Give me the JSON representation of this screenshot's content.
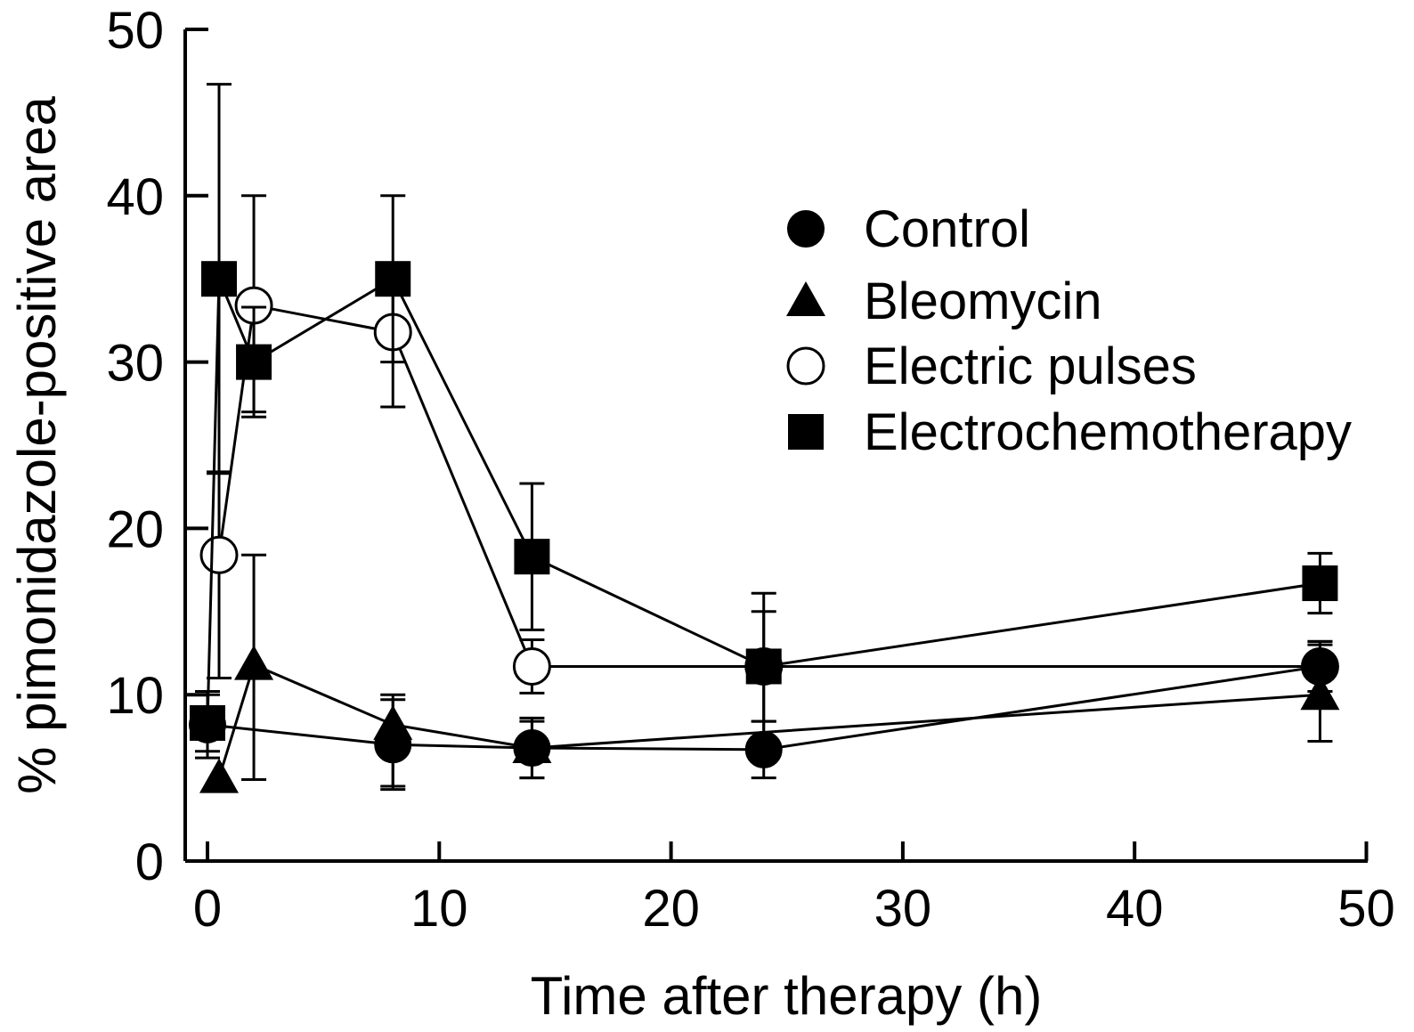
{
  "chart_data": {
    "type": "line",
    "title": "",
    "xlabel": "Time after therapy (h)",
    "ylabel": "% pimonidazole-positive area",
    "xlim": [
      -1,
      50
    ],
    "ylim": [
      0,
      50
    ],
    "xticks": [
      0,
      10,
      20,
      30,
      40,
      50
    ],
    "yticks": [
      0,
      10,
      20,
      30,
      40,
      50
    ],
    "xtick_labels": [
      "0",
      "10",
      "20",
      "30",
      "40",
      "50"
    ],
    "ytick_labels": [
      "0",
      "10",
      "20",
      "30",
      "40",
      "50"
    ],
    "grid": false,
    "legend_position": "top-right",
    "series": [
      {
        "name": "Control",
        "marker": "circle-filled",
        "x": [
          0,
          8,
          14,
          24,
          48
        ],
        "y": [
          8.2,
          7.0,
          6.8,
          6.7,
          11.7
        ],
        "err_up": [
          2.0,
          2.7,
          1.8,
          1.7,
          1.5
        ],
        "err_down": [
          2.0,
          2.7,
          1.8,
          1.7,
          1.5
        ]
      },
      {
        "name": "Bleomycin",
        "marker": "triangle-filled",
        "x": [
          0.5,
          2,
          8,
          14,
          48
        ],
        "y": [
          5.0,
          11.8,
          8.2,
          6.8,
          10.0
        ],
        "err_up": [
          0,
          6.6,
          1.8,
          1.6,
          3.0
        ],
        "err_down": [
          0,
          6.9,
          3.7,
          1.8,
          2.8
        ]
      },
      {
        "name": "Electric pulses",
        "marker": "circle-open",
        "x": [
          0.5,
          2,
          8,
          14,
          24,
          48
        ],
        "y": [
          18.4,
          33.4,
          31.8,
          11.7,
          11.7,
          11.7
        ],
        "err_up": [
          5.0,
          6.6,
          3.1,
          1.6,
          3.3,
          1.5
        ],
        "err_down": [
          7.4,
          6.4,
          4.5,
          1.6,
          3.3,
          1.5
        ]
      },
      {
        "name": "Electrochemotherapy",
        "marker": "square-filled",
        "x": [
          0,
          0.5,
          2,
          8,
          14,
          24,
          48
        ],
        "y": [
          8.3,
          35.0,
          30.0,
          35.0,
          18.3,
          11.7,
          16.7
        ],
        "err_up": [
          1.7,
          11.7,
          3.3,
          5.0,
          4.4,
          4.4,
          1.8
        ],
        "err_down": [
          1.7,
          11.7,
          3.3,
          5.0,
          4.4,
          4.4,
          1.8
        ]
      }
    ]
  }
}
